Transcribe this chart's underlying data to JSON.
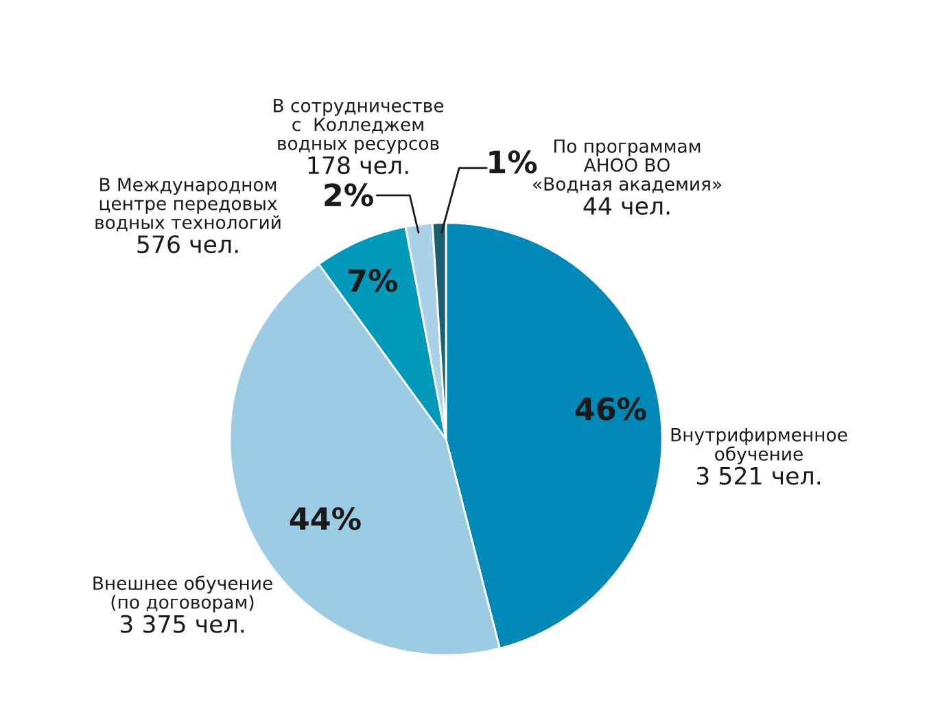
{
  "chart_data": {
    "type": "pie",
    "categories": [
      "Внутрифирменное\nобучение\n3 521 чел.",
      "Внешнее обучение\n(по договорам)\n3 375 чел.",
      "В Международном\nцентре передовых\nводных технологий\n576 чел.",
      "В сотрудничестве\nс  Колледжем\nводных ресурсов\n178 чел.",
      "По программам\nАНОО ВО\n«Водная академия»\n44 чел."
    ],
    "values": [
      46,
      44,
      7,
      2,
      1
    ],
    "value_labels": [
      "46%",
      "44%",
      "7%",
      "2%",
      "1%"
    ],
    "colors": [
      "#0088b6",
      "#9ccbe4",
      "#0099b9",
      "#a9d2e8",
      "#1d5f70"
    ]
  }
}
